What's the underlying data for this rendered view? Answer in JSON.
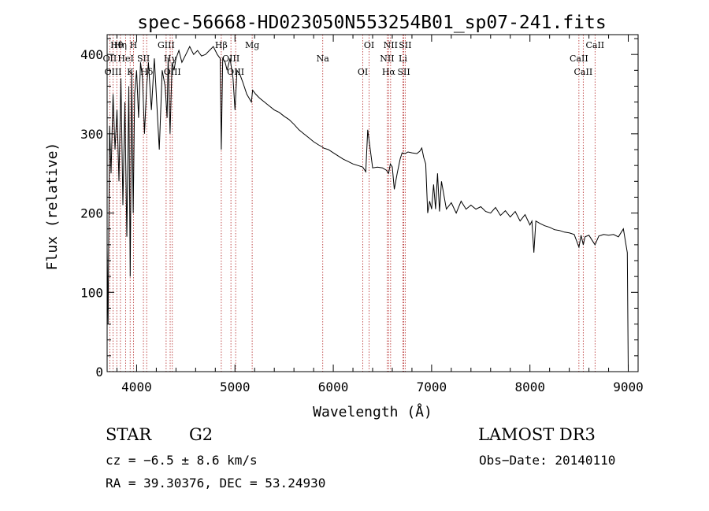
{
  "chart_data": {
    "type": "line",
    "title": "spec-56668-HD023050N553254B01_sp07-241.fits",
    "xlabel": "Wavelength (Å)",
    "ylabel": "Flux (relative)",
    "xlim": [
      3700,
      9100
    ],
    "ylim": [
      0,
      425
    ],
    "xticks": [
      4000,
      5000,
      6000,
      7000,
      8000,
      9000
    ],
    "yticks": [
      0,
      100,
      200,
      300,
      400
    ],
    "series": [
      {
        "x": [
          3700,
          3710,
          3725,
          3740,
          3760,
          3780,
          3800,
          3820,
          3840,
          3860,
          3880,
          3900,
          3920,
          3935,
          3950,
          3965,
          3980,
          4000,
          4020,
          4040,
          4060,
          4080,
          4102,
          4120,
          4150,
          4180,
          4200,
          4230,
          4260,
          4290,
          4310,
          4320,
          4340,
          4360,
          4380,
          4400,
          4430,
          4460,
          4500,
          4540,
          4580,
          4620,
          4660,
          4700,
          4740,
          4780,
          4820,
          4850,
          4861,
          4875,
          4900,
          4920,
          4950,
          4980,
          5000,
          5020,
          5050,
          5080,
          5120,
          5167,
          5180,
          5210,
          5250,
          5300,
          5350,
          5400,
          5450,
          5500,
          5550,
          5600,
          5650,
          5700,
          5750,
          5800,
          5850,
          5893,
          5900,
          5950,
          6000,
          6050,
          6100,
          6150,
          6200,
          6250,
          6300,
          6330,
          6350,
          6400,
          6450,
          6500,
          6540,
          6563,
          6580,
          6600,
          6620,
          6650,
          6680,
          6700,
          6730,
          6760,
          6800,
          6850,
          6880,
          6900,
          6920,
          6940,
          6960,
          6980,
          7000,
          7020,
          7040,
          7060,
          7080,
          7100,
          7150,
          7200,
          7250,
          7300,
          7350,
          7400,
          7450,
          7500,
          7550,
          7600,
          7650,
          7700,
          7750,
          7800,
          7850,
          7900,
          7950,
          8000,
          8020,
          8040,
          8060,
          8100,
          8150,
          8200,
          8250,
          8300,
          8350,
          8400,
          8450,
          8498,
          8520,
          8542,
          8560,
          8600,
          8662,
          8700,
          8750,
          8800,
          8850,
          8900,
          8950,
          8990,
          9000
        ],
        "y": [
          160,
          60,
          310,
          250,
          350,
          280,
          330,
          240,
          370,
          210,
          340,
          170,
          360,
          120,
          380,
          200,
          350,
          380,
          320,
          390,
          370,
          300,
          360,
          390,
          330,
          395,
          350,
          280,
          380,
          360,
          320,
          395,
          300,
          390,
          380,
          395,
          405,
          390,
          400,
          410,
          400,
          405,
          398,
          400,
          405,
          410,
          400,
          395,
          280,
          395,
          390,
          380,
          395,
          370,
          330,
          380,
          375,
          365,
          350,
          340,
          355,
          350,
          345,
          340,
          335,
          330,
          327,
          322,
          318,
          312,
          305,
          300,
          295,
          290,
          286,
          283,
          282,
          280,
          276,
          272,
          268,
          265,
          262,
          260,
          258,
          252,
          305,
          257,
          258,
          257,
          254,
          250,
          262,
          258,
          230,
          250,
          268,
          276,
          275,
          277,
          276,
          275,
          278,
          282,
          270,
          262,
          200,
          215,
          205,
          236,
          205,
          250,
          202,
          240,
          205,
          213,
          200,
          215,
          205,
          210,
          205,
          208,
          202,
          200,
          207,
          197,
          203,
          195,
          202,
          190,
          198,
          185,
          190,
          150,
          190,
          187,
          184,
          182,
          179,
          178,
          176,
          175,
          173,
          157,
          172,
          160,
          170,
          172,
          160,
          171,
          173,
          172,
          173,
          170,
          180,
          150,
          0
        ]
      }
    ],
    "line_markers": [
      {
        "label": "Hθ",
        "x": 3798
      },
      {
        "label": "OII",
        "x": 3727
      },
      {
        "label": "OIII",
        "x": 3760
      },
      {
        "label": "Hη",
        "x": 3835
      },
      {
        "label": "HeI",
        "x": 3889
      },
      {
        "label": "K",
        "x": 3934
      },
      {
        "label": "H",
        "x": 3968
      },
      {
        "label": "SII",
        "x": 4069
      },
      {
        "label": "Hδ",
        "x": 4102
      },
      {
        "label": "GIII",
        "x": 4300
      },
      {
        "label": "Hγ",
        "x": 4341
      },
      {
        "label": "OIII",
        "x": 4363
      },
      {
        "label": "Hβ",
        "x": 4861
      },
      {
        "label": "OIII",
        "x": 4959
      },
      {
        "label": "OIII",
        "x": 5007
      },
      {
        "label": "Mg",
        "x": 5175
      },
      {
        "label": "Na",
        "x": 5893
      },
      {
        "label": "OI",
        "x": 6300
      },
      {
        "label": "OI",
        "x": 6364
      },
      {
        "label": "NII",
        "x": 6548
      },
      {
        "label": "Hα",
        "x": 6563
      },
      {
        "label": "NII",
        "x": 6583
      },
      {
        "label": "Li",
        "x": 6708
      },
      {
        "label": "SII",
        "x": 6717
      },
      {
        "label": "SII",
        "x": 6731
      },
      {
        "label": "CaII",
        "x": 8498
      },
      {
        "label": "CaII",
        "x": 8542
      },
      {
        "label": "CaII",
        "x": 8662
      }
    ]
  },
  "info": {
    "object_class": "STAR",
    "subclass": "G2",
    "survey": "LAMOST DR3",
    "cz": "cz = −6.5 ± 8.6 km/s",
    "obs_date": "Obs−Date: 20140110",
    "coords": "RA =  39.30376, DEC =  53.24930"
  }
}
